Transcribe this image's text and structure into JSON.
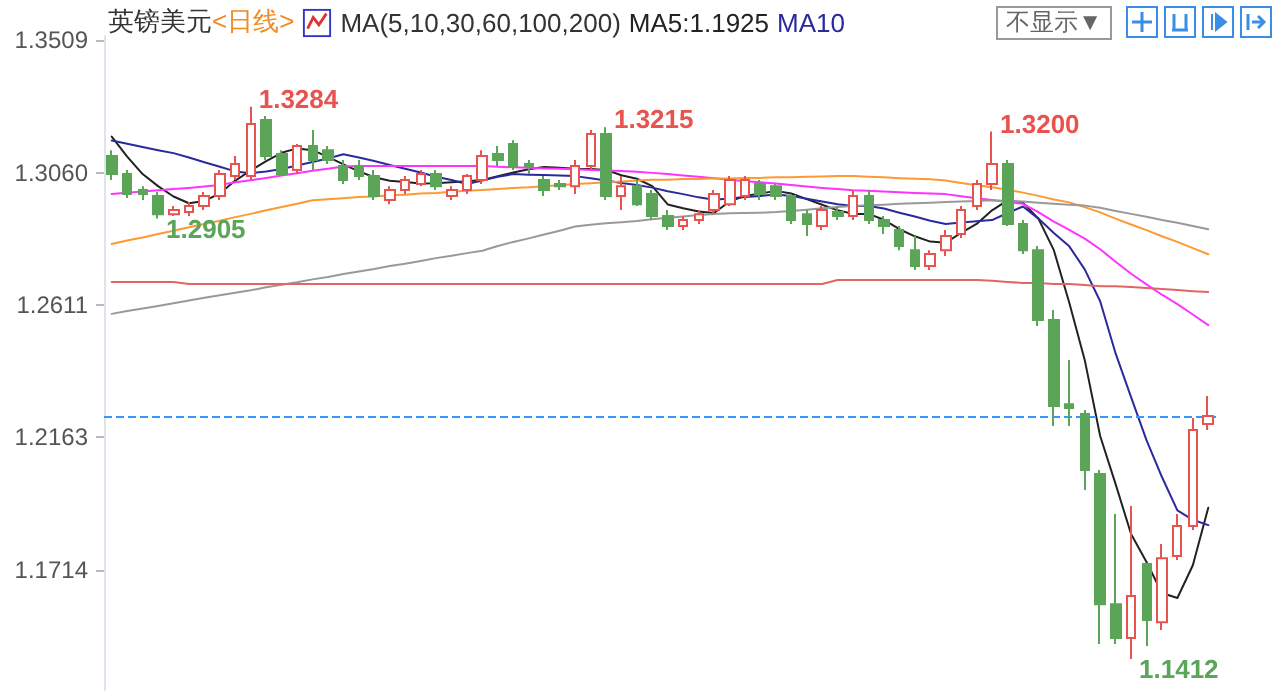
{
  "chart_data": {
    "type": "candlestick",
    "title": "英镑美元",
    "subtitle": "<日线>",
    "annotations": [
      "MA(5,10,30,60,100,200)",
      "不显示▼"
    ],
    "value_labels": [
      null,
      null,
      null,
      "1.2905",
      null,
      null,
      null,
      null,
      null,
      "1.3284",
      null,
      null,
      null,
      null,
      null,
      null,
      null,
      null,
      null,
      null,
      null,
      null,
      null,
      null,
      null,
      null,
      null,
      null,
      null,
      null,
      null,
      null,
      "1.3215",
      null,
      null,
      null,
      null,
      null,
      null,
      null,
      null,
      null,
      null,
      null,
      null,
      null,
      null,
      null,
      null,
      null,
      null,
      null,
      null,
      null,
      null,
      null,
      null,
      "1.3200",
      null,
      null,
      null,
      null,
      null,
      null,
      null,
      null,
      "1.1412",
      null,
      null,
      null,
      null,
      null
    ],
    "categories": [
      null,
      null,
      null,
      null,
      null,
      null,
      null,
      null,
      null,
      null,
      null,
      null,
      null,
      null,
      null,
      null,
      null,
      null,
      null,
      null,
      null,
      null,
      null,
      null,
      null,
      null,
      null,
      null,
      null,
      null,
      null,
      null,
      null,
      null,
      null,
      null,
      null,
      null,
      null,
      null,
      null,
      null,
      null,
      null,
      null,
      null,
      null,
      null,
      null,
      null,
      null,
      null,
      null,
      null,
      null,
      null,
      null,
      null,
      null,
      null,
      null,
      null,
      null,
      null,
      null,
      null,
      null,
      null,
      null,
      null,
      null,
      null
    ],
    "ohlc": [
      [
        1.3117,
        1.3137,
        1.3036,
        1.3056
      ],
      [
        1.3056,
        1.307,
        1.2975,
        1.2988
      ],
      [
        1.3002,
        1.3015,
        1.2968,
        1.2988
      ],
      [
        1.2982,
        1.2995,
        1.2905,
        1.292
      ],
      [
        1.292,
        1.2948,
        1.2914,
        1.2934
      ],
      [
        1.2927,
        1.2961,
        1.2914,
        1.2948
      ],
      [
        1.2948,
        1.2995,
        1.2934,
        1.2982
      ],
      [
        1.2982,
        1.307,
        1.2968,
        1.3056
      ],
      [
        1.3049,
        1.3117,
        1.3036,
        1.309
      ],
      [
        1.3049,
        1.3284,
        1.3036,
        1.3226
      ],
      [
        1.3239,
        1.3253,
        1.3104,
        1.3117
      ],
      [
        1.3124,
        1.3137,
        1.3049,
        1.3056
      ],
      [
        1.307,
        1.3158,
        1.3056,
        1.3151
      ],
      [
        1.3151,
        1.3205,
        1.307,
        1.3104
      ],
      [
        1.3137,
        1.3151,
        1.309,
        1.3104
      ],
      [
        1.3083,
        1.3104,
        1.3022,
        1.3036
      ],
      [
        1.3083,
        1.3104,
        1.3036,
        1.3049
      ],
      [
        1.3049,
        1.307,
        1.2968,
        1.2982
      ],
      [
        1.2968,
        1.3015,
        1.2954,
        1.3002
      ],
      [
        1.3002,
        1.3049,
        1.2988,
        1.3036
      ],
      [
        1.3022,
        1.307,
        1.3015,
        1.3056
      ],
      [
        1.3056,
        1.307,
        1.3002,
        1.3015
      ],
      [
        1.2982,
        1.3015,
        1.2968,
        1.3002
      ],
      [
        1.3002,
        1.3056,
        1.2988,
        1.3049
      ],
      [
        1.3036,
        1.3137,
        1.3022,
        1.3117
      ],
      [
        1.3124,
        1.3151,
        1.3083,
        1.3104
      ],
      [
        1.3158,
        1.3171,
        1.307,
        1.3083
      ],
      [
        1.309,
        1.3104,
        1.3056,
        1.3083
      ],
      [
        1.3036,
        1.3049,
        1.2982,
        1.3002
      ],
      [
        1.3022,
        1.3036,
        1.3002,
        1.3015
      ],
      [
        1.3015,
        1.3104,
        1.2988,
        1.3083
      ],
      [
        1.3083,
        1.3205,
        1.307,
        1.3192
      ],
      [
        1.3192,
        1.3215,
        1.2968,
        1.2982
      ],
      [
        1.2982,
        1.3049,
        1.2934,
        1.3015
      ],
      [
        1.3015,
        1.3036,
        1.2948,
        1.2954
      ],
      [
        1.2988,
        1.3002,
        1.29,
        1.2914
      ],
      [
        1.2914,
        1.2934,
        1.2866,
        1.288
      ],
      [
        1.288,
        1.2914,
        1.2866,
        1.29
      ],
      [
        1.29,
        1.2934,
        1.2887,
        1.292
      ],
      [
        1.2934,
        1.3002,
        1.292,
        1.2988
      ],
      [
        1.2954,
        1.3049,
        1.2948,
        1.3036
      ],
      [
        1.2982,
        1.3049,
        1.2968,
        1.3036
      ],
      [
        1.3022,
        1.3036,
        1.2968,
        1.2988
      ],
      [
        1.3015,
        1.3022,
        1.2968,
        1.2982
      ],
      [
        1.2982,
        1.2988,
        1.2887,
        1.29
      ],
      [
        1.292,
        1.2934,
        1.2846,
        1.2887
      ],
      [
        1.288,
        1.2948,
        1.2866,
        1.2934
      ],
      [
        1.2927,
        1.2948,
        1.29,
        1.2914
      ],
      [
        1.2914,
        1.3002,
        1.29,
        1.2982
      ],
      [
        1.2982,
        1.3002,
        1.2887,
        1.29
      ],
      [
        1.29,
        1.2914,
        1.2853,
        1.288
      ],
      [
        1.2866,
        1.288,
        1.2798,
        1.2812
      ],
      [
        1.2798,
        1.2846,
        1.2731,
        1.2744
      ],
      [
        1.2744,
        1.2798,
        1.2731,
        1.2785
      ],
      [
        1.2798,
        1.2866,
        1.2778,
        1.2846
      ],
      [
        1.2853,
        1.2948,
        1.2839,
        1.2934
      ],
      [
        1.2948,
        1.3036,
        1.2934,
        1.3022
      ],
      [
        1.3022,
        1.32,
        1.3002,
        1.309
      ],
      [
        1.309,
        1.3104,
        1.288,
        1.2887
      ],
      [
        1.2887,
        1.29,
        1.2785,
        1.2798
      ],
      [
        1.2798,
        1.2812,
        1.2541,
        1.2561
      ],
      [
        1.2561,
        1.2595,
        1.2202,
        1.227
      ],
      [
        1.2276,
        1.2426,
        1.2202,
        1.2263
      ],
      [
        1.2243,
        1.2256,
        1.1985,
        1.2053
      ],
      [
        1.2039,
        1.2053,
        1.1463,
        1.1598
      ],
      [
        1.1598,
        1.1904,
        1.1463,
        1.1483
      ],
      [
        1.1483,
        1.1931,
        1.1412,
        1.1626
      ],
      [
        1.1734,
        1.1734,
        1.1456,
        1.1544
      ],
      [
        1.1537,
        1.1802,
        1.151,
        1.1754
      ],
      [
        1.1761,
        1.1904,
        1.1748,
        1.1863
      ],
      [
        1.1863,
        1.2229,
        1.1849,
        1.2188
      ],
      [
        1.2209,
        1.2304,
        1.2188,
        1.2236
      ]
    ],
    "colors": [
      "#5aa557",
      "#5aa557",
      "#5aa557",
      "#5aa557",
      "#e8534f",
      "#e8534f",
      "#e8534f",
      "#e8534f",
      "#e8534f",
      "#e8534f",
      "#5aa557",
      "#5aa557",
      "#e8534f",
      "#5aa557",
      "#5aa557",
      "#5aa557",
      "#5aa557",
      "#5aa557",
      "#e8534f",
      "#e8534f",
      "#e8534f",
      "#5aa557",
      "#e8534f",
      "#e8534f",
      "#e8534f",
      "#5aa557",
      "#5aa557",
      "#5aa557",
      "#5aa557",
      "#5aa557",
      "#e8534f",
      "#e8534f",
      "#5aa557",
      "#e8534f",
      "#5aa557",
      "#5aa557",
      "#5aa557",
      "#e8534f",
      "#e8534f",
      "#e8534f",
      "#e8534f",
      "#e8534f",
      "#5aa557",
      "#5aa557",
      "#5aa557",
      "#5aa557",
      "#e8534f",
      "#5aa557",
      "#e8534f",
      "#5aa557",
      "#5aa557",
      "#5aa557",
      "#5aa557",
      "#e8534f",
      "#e8534f",
      "#e8534f",
      "#e8534f",
      "#e8534f",
      "#5aa557",
      "#5aa557",
      "#5aa557",
      "#5aa557",
      "#5aa557",
      "#5aa557",
      "#5aa557",
      "#5aa557",
      "#e8534f",
      "#5aa557",
      "#e8534f",
      "#e8534f",
      "#e8534f",
      "#e8534f"
    ],
    "series": [
      {
        "type": "line",
        "name": "MA5:1.1925",
        "color": "#222222",
        "values": [
          1.3183,
          1.3115,
          1.3056,
          1.3015,
          1.298,
          1.2957,
          1.2965,
          1.299,
          1.3034,
          1.3068,
          1.31,
          1.3128,
          1.3143,
          1.3137,
          1.3114,
          1.3089,
          1.3065,
          1.3045,
          1.3033,
          1.3029,
          1.3024,
          1.3025,
          1.3028,
          1.3032,
          1.3036,
          1.3049,
          1.3061,
          1.3072,
          1.308,
          1.3077,
          1.3074,
          1.3073,
          1.307,
          1.3052,
          1.304,
          1.3015,
          1.2953,
          1.294,
          1.2929,
          1.2924,
          1.2963,
          1.2982,
          1.299,
          1.2999,
          1.299,
          1.2971,
          1.2952,
          1.2933,
          1.2921,
          1.2921,
          1.2901,
          1.2869,
          1.2845,
          1.2827,
          1.2823,
          1.2857,
          1.2887,
          1.2933,
          1.2967,
          1.2959,
          1.2905,
          1.2798,
          1.262,
          1.2426,
          1.2168,
          1.2005,
          1.1836,
          1.1741,
          1.1636,
          1.1619,
          1.173,
          1.1925
        ]
      },
      {
        "type": "line",
        "name": "MA10",
        "color": "#2a2a9c",
        "values": [
          1.317,
          1.3159,
          1.3148,
          1.3137,
          1.3127,
          1.3112,
          1.3096,
          1.3081,
          1.3065,
          1.3059,
          1.3065,
          1.3073,
          1.3085,
          1.3097,
          1.3109,
          1.3123,
          1.3112,
          1.31,
          1.3087,
          1.3074,
          1.3061,
          1.3047,
          1.3036,
          1.3022,
          1.3034,
          1.3047,
          1.3056,
          1.3054,
          1.3053,
          1.3051,
          1.3049,
          1.3042,
          1.3034,
          1.3026,
          1.3019,
          1.301,
          1.2998,
          1.2988,
          1.2977,
          1.2969,
          1.2973,
          1.2978,
          1.2982,
          1.2987,
          1.2982,
          1.2972,
          1.2963,
          1.2954,
          1.2948,
          1.2948,
          1.2939,
          1.2925,
          1.2912,
          1.2898,
          1.2887,
          1.2892,
          1.2896,
          1.29,
          1.2924,
          1.2946,
          1.2905,
          1.2856,
          1.2811,
          1.2733,
          1.2625,
          1.2448,
          1.23,
          1.2154,
          1.2029,
          1.1916,
          1.1884,
          1.1866
        ]
      },
      {
        "type": "line",
        "color": "#ff33ff",
        "values": [
          1.2988,
          1.2993,
          1.2997,
          1.3001,
          1.3005,
          1.3009,
          1.3014,
          1.3019,
          1.3028,
          1.3035,
          1.3043,
          1.3051,
          1.3059,
          1.3067,
          1.3074,
          1.3082,
          1.3083,
          1.3083,
          1.3083,
          1.3083,
          1.3083,
          1.3083,
          1.3083,
          1.3083,
          1.3083,
          1.3081,
          1.3079,
          1.3077,
          1.3075,
          1.3074,
          1.3072,
          1.307,
          1.3068,
          1.3066,
          1.3064,
          1.306,
          1.3056,
          1.3051,
          1.3047,
          1.3042,
          1.3037,
          1.3032,
          1.3028,
          1.3024,
          1.3019,
          1.3014,
          1.3009,
          1.3005,
          1.3001,
          1.2999,
          1.2997,
          1.2994,
          1.2992,
          1.299,
          1.2988,
          1.2981,
          1.2974,
          1.2968,
          1.2961,
          1.2955,
          1.2927,
          1.2895,
          1.2867,
          1.2837,
          1.2801,
          1.2759,
          1.2718,
          1.2682,
          1.2647,
          1.2615,
          1.258,
          1.2544
        ]
      },
      {
        "type": "line",
        "color": "#ff9933",
        "values": [
          1.2819,
          1.2831,
          1.2841,
          1.2853,
          1.2864,
          1.2876,
          1.2887,
          1.2898,
          1.291,
          1.2921,
          1.2933,
          1.2944,
          1.2955,
          1.2967,
          1.2971,
          1.2974,
          1.2978,
          1.298,
          1.2984,
          1.2986,
          1.299,
          1.2992,
          1.2996,
          1.2999,
          1.3002,
          1.3005,
          1.3009,
          1.3011,
          1.3015,
          1.3018,
          1.3022,
          1.3025,
          1.3028,
          1.3031,
          1.3034,
          1.3037,
          1.3037,
          1.3039,
          1.3039,
          1.3041,
          1.3041,
          1.3043,
          1.3043,
          1.3045,
          1.3045,
          1.3047,
          1.3048,
          1.3049,
          1.3049,
          1.3047,
          1.3045,
          1.3042,
          1.304,
          1.3038,
          1.3034,
          1.3026,
          1.3018,
          1.3011,
          1.3003,
          1.2993,
          1.2982,
          1.297,
          1.296,
          1.2944,
          1.2926,
          1.2905,
          1.2885,
          1.2866,
          1.2845,
          1.2826,
          1.2805,
          1.2784
        ]
      },
      {
        "type": "line",
        "color": "#999999",
        "values": [
          1.2582,
          1.2592,
          1.26,
          1.2609,
          1.2618,
          1.2627,
          1.2637,
          1.2645,
          1.2654,
          1.2662,
          1.2672,
          1.2681,
          1.2689,
          1.2699,
          1.2707,
          1.2717,
          1.2726,
          1.2734,
          1.2744,
          1.2752,
          1.2761,
          1.2771,
          1.2779,
          1.2788,
          1.2796,
          1.2812,
          1.2826,
          1.2838,
          1.2851,
          1.2864,
          1.2878,
          1.2884,
          1.2889,
          1.2893,
          1.2897,
          1.2903,
          1.2908,
          1.2912,
          1.2917,
          1.2921,
          1.2923,
          1.2924,
          1.2925,
          1.2927,
          1.2931,
          1.2935,
          1.294,
          1.2944,
          1.2948,
          1.295,
          1.2952,
          1.2955,
          1.2957,
          1.2959,
          1.2961,
          1.2963,
          1.2965,
          1.2967,
          1.2965,
          1.2963,
          1.2959,
          1.2955,
          1.2952,
          1.2949,
          1.2942,
          1.2931,
          1.2921,
          1.2911,
          1.29,
          1.2891,
          1.288,
          1.2869
        ]
      },
      {
        "type": "line",
        "color": "#e06666",
        "values": [
          1.269,
          1.269,
          1.269,
          1.269,
          1.269,
          1.2683,
          1.2683,
          1.2683,
          1.2683,
          1.2683,
          1.2683,
          1.2683,
          1.2683,
          1.2683,
          1.2683,
          1.2683,
          1.2683,
          1.2683,
          1.2683,
          1.2683,
          1.2683,
          1.2683,
          1.2683,
          1.2683,
          1.2683,
          1.2683,
          1.2683,
          1.2683,
          1.2683,
          1.2683,
          1.2683,
          1.2683,
          1.2683,
          1.2683,
          1.2683,
          1.2683,
          1.2683,
          1.2683,
          1.2683,
          1.2683,
          1.2683,
          1.2683,
          1.2683,
          1.2683,
          1.2683,
          1.2683,
          1.2683,
          1.2697,
          1.2697,
          1.2697,
          1.2697,
          1.2697,
          1.2697,
          1.2697,
          1.2697,
          1.2697,
          1.2697,
          1.2694,
          1.269,
          1.2687,
          1.2687,
          1.2683,
          1.2683,
          1.268,
          1.2676,
          1.2676,
          1.2673,
          1.267,
          1.2666,
          1.2663,
          1.2659,
          1.2656
        ]
      }
    ],
    "ylim": [
      1.1307,
      1.3524
    ],
    "yticks": [
      1.3509,
      {
        "value": 1.306,
        "label": "1.3060"
      },
      1.2611,
      1.2163,
      1.1714
    ],
    "ref_lines": [
      {
        "axis": "y",
        "value": 1.2236,
        "color": "#3399ff",
        "line_style": "dashed"
      }
    ],
    "tick_labels": "y",
    "grid": false,
    "legend": "top",
    "line_style": "solid"
  }
}
